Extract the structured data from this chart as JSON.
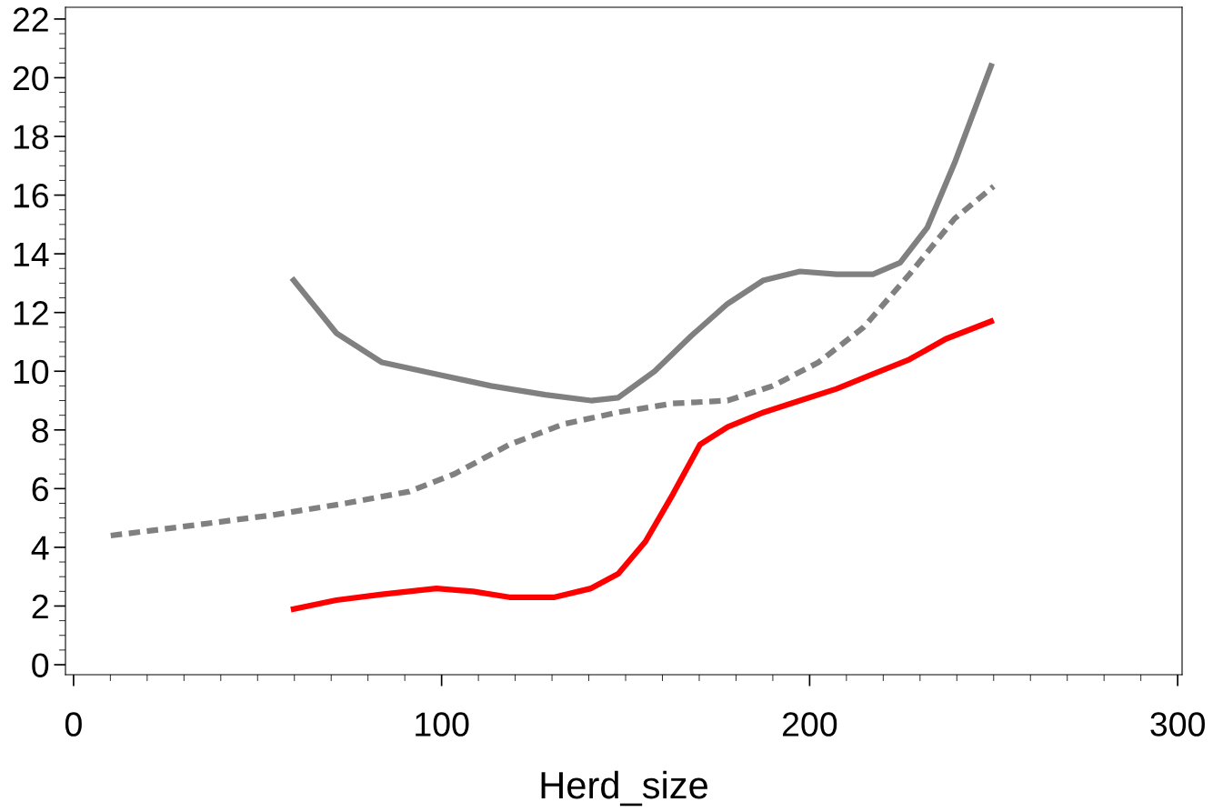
{
  "chart_data": {
    "type": "line",
    "xlabel": "Herd_size",
    "xlim": [
      -2.2,
      301.2
    ],
    "ylim": [
      -0.34,
      22.4
    ],
    "xticks": [
      0,
      100,
      200,
      300
    ],
    "yticks": [
      0,
      2,
      4,
      6,
      8,
      10,
      12,
      14,
      16,
      18,
      20,
      22
    ],
    "grid": false,
    "legend": false,
    "marker": "none",
    "series": [
      {
        "color": "#808080",
        "line_style": "solid",
        "x": [
          59.8,
          71.4,
          83.8,
          98.6,
          113.4,
          128.2,
          140.6,
          148,
          157.9,
          167.8,
          177.7,
          187.5,
          197.4,
          207.3,
          217.2,
          224.6,
          232.0,
          239.4,
          249.3
        ],
        "values": [
          13.1,
          11.3,
          10.3,
          9.9,
          9.5,
          9.2,
          9.0,
          9.1,
          10.0,
          11.2,
          12.3,
          13.1,
          13.4,
          13.3,
          13.3,
          13.7,
          14.9,
          17.1,
          20.4
        ]
      },
      {
        "color": "#808080",
        "line_style": "dashed",
        "x": [
          10.1,
          29.4,
          54.1,
          73.9,
          91.2,
          103.5,
          118.4,
          133.2,
          148,
          162.8,
          177.7,
          190,
          202.4,
          214.7,
          227.1,
          239.4,
          250
        ],
        "values": [
          4.4,
          4.7,
          5.1,
          5.5,
          5.9,
          6.5,
          7.5,
          8.2,
          8.6,
          8.9,
          9.0,
          9.5,
          10.3,
          11.5,
          13.3,
          15.2,
          16.3
        ]
      },
      {
        "color": "#ff0000",
        "line_style": "solid",
        "x": [
          59.8,
          71.4,
          83.8,
          98.6,
          108.5,
          118.4,
          130.7,
          140.6,
          148,
          155.4,
          162.8,
          170.2,
          177.7,
          187.5,
          197.4,
          207.3,
          217.2,
          227.1,
          237,
          249.3
        ],
        "values": [
          1.9,
          2.2,
          2.4,
          2.6,
          2.5,
          2.3,
          2.3,
          2.6,
          3.1,
          4.2,
          5.8,
          7.5,
          8.1,
          8.6,
          9.0,
          9.4,
          9.9,
          10.4,
          11.1,
          11.7
        ]
      }
    ]
  }
}
